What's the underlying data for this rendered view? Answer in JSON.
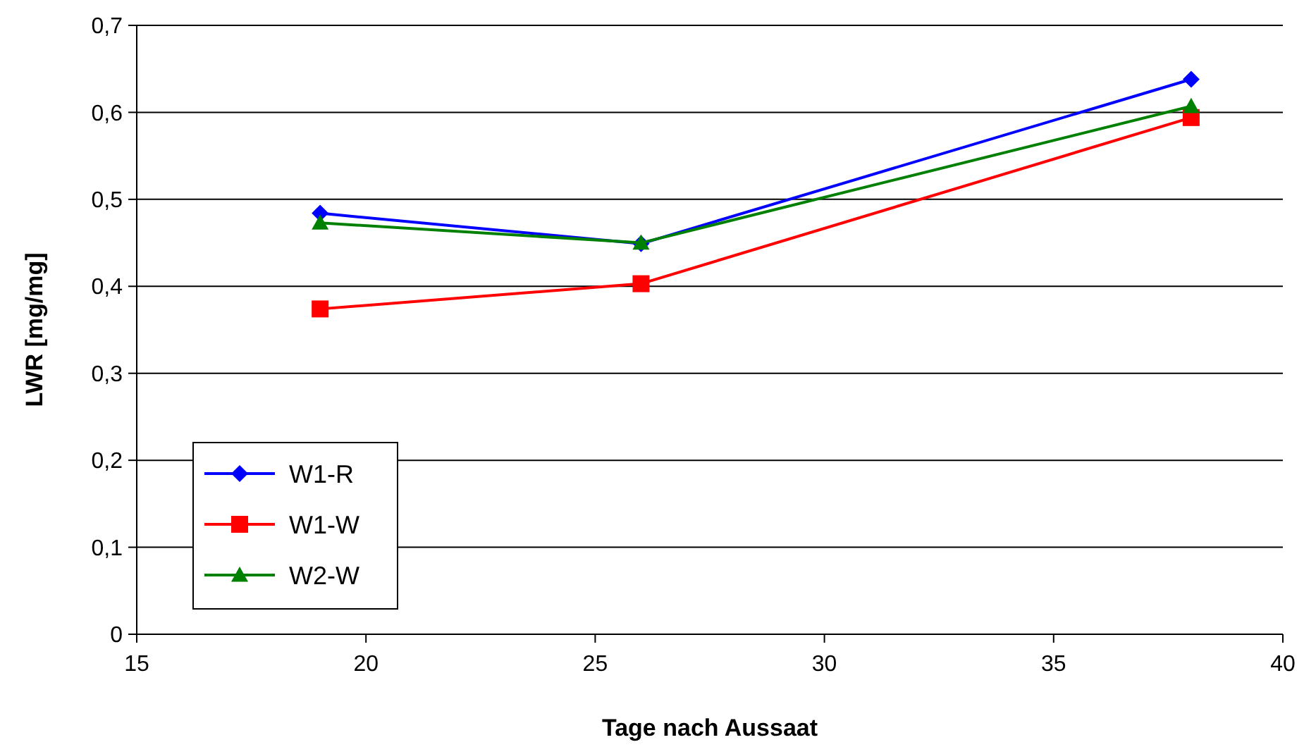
{
  "chart_data": {
    "type": "line",
    "xlabel": "Tage nach Aussaat",
    "ylabel": "LWR [mg/mg]",
    "x": [
      19,
      26,
      38
    ],
    "series": [
      {
        "name": "W1-R",
        "color": "#0000ff",
        "marker": "diamond",
        "values": [
          0.484,
          0.449,
          0.638
        ]
      },
      {
        "name": "W1-W",
        "color": "#ff0000",
        "marker": "square",
        "values": [
          0.374,
          0.403,
          0.594
        ]
      },
      {
        "name": "W2-W",
        "color": "#008000",
        "marker": "triangle",
        "values": [
          0.473,
          0.45,
          0.607
        ]
      }
    ],
    "xlim": [
      15,
      40
    ],
    "xticks": [
      15,
      20,
      25,
      30,
      35,
      40
    ],
    "ylim": [
      0,
      0.7
    ],
    "yticks": [
      {
        "value": 0,
        "label": "0"
      },
      {
        "value": 0.1,
        "label": "0,1"
      },
      {
        "value": 0.2,
        "label": "0,2"
      },
      {
        "value": 0.3,
        "label": "0,3"
      },
      {
        "value": 0.4,
        "label": "0,4"
      },
      {
        "value": 0.5,
        "label": "0,5"
      },
      {
        "value": 0.6,
        "label": "0,6"
      },
      {
        "value": 0.7,
        "label": "0,7"
      }
    ],
    "grid": "y",
    "legend": "bottom left",
    "line_style": "solid"
  }
}
